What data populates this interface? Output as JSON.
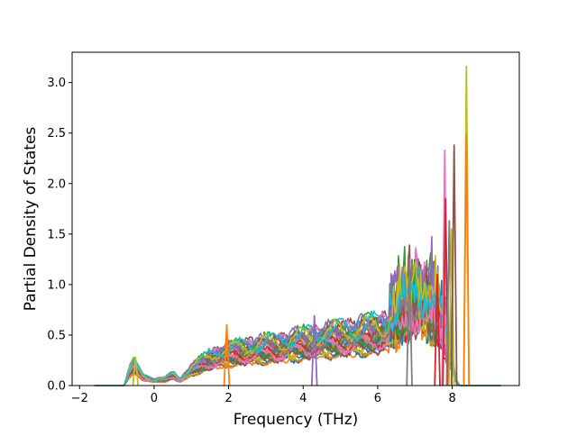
{
  "chart_data": {
    "type": "line",
    "title": "",
    "xlabel": "Frequency (THz)",
    "ylabel": "Partial Density of States",
    "xlim": [
      -2.2,
      9.8
    ],
    "ylim": [
      0,
      3.3
    ],
    "xticks": [
      -2,
      0,
      2,
      4,
      6,
      8
    ],
    "xtick_labels": [
      "−2",
      "0",
      "2",
      "4",
      "6",
      "8"
    ],
    "yticks": [
      0.0,
      0.5,
      1.0,
      1.5,
      2.0,
      2.5,
      3.0
    ],
    "ytick_labels": [
      "0.0",
      "0.5",
      "1.0",
      "1.5",
      "2.0",
      "2.5",
      "3.0"
    ],
    "grid": false,
    "legend": "none",
    "x_range": [
      -1.6,
      9.3
    ],
    "palette": [
      "#1f77b4",
      "#ff7f0e",
      "#2ca02c",
      "#d62728",
      "#9467bd",
      "#8c564b",
      "#e377c2",
      "#7f7f7f",
      "#bcbd22",
      "#17becf"
    ],
    "series_count": 40,
    "envelope": {
      "x": [
        -1.6,
        -0.8,
        -0.7,
        -0.55,
        -0.45,
        -0.3,
        0.0,
        0.3,
        0.5,
        0.7,
        1.0,
        1.5,
        2.0,
        2.5,
        3.0,
        3.5,
        4.0,
        4.5,
        5.0,
        5.5,
        6.0,
        6.5,
        6.9,
        7.2,
        7.5,
        7.7,
        7.8,
        7.9,
        8.0,
        8.1,
        8.2,
        8.3,
        8.4,
        8.5,
        8.6,
        9.3
      ],
      "y": [
        0.0,
        0.0,
        0.1,
        0.2,
        0.15,
        0.08,
        0.05,
        0.06,
        0.1,
        0.05,
        0.15,
        0.25,
        0.3,
        0.33,
        0.35,
        0.37,
        0.4,
        0.43,
        0.45,
        0.47,
        0.5,
        0.55,
        0.65,
        0.7,
        0.6,
        0.5,
        0.4,
        0.3,
        0.2,
        0.05,
        0.0,
        0.0,
        0.0,
        0.0,
        0.0,
        0.0
      ]
    },
    "peaks": [
      {
        "x": -0.5,
        "y": 0.28,
        "color": "#bcbd22"
      },
      {
        "x": 1.95,
        "y": 0.6,
        "color": "#ff7f0e"
      },
      {
        "x": 4.3,
        "y": 0.69,
        "color": "#9467bd"
      },
      {
        "x": 6.85,
        "y": 1.25,
        "color": "#7f7f7f"
      },
      {
        "x": 7.6,
        "y": 1.1,
        "color": "#d62728"
      },
      {
        "x": 7.8,
        "y": 2.33,
        "color": "#e377c2"
      },
      {
        "x": 7.82,
        "y": 1.85,
        "color": "#d62728"
      },
      {
        "x": 7.92,
        "y": 1.63,
        "color": "#7f7f7f"
      },
      {
        "x": 7.98,
        "y": 1.55,
        "color": "#bcbd22"
      },
      {
        "x": 8.05,
        "y": 2.38,
        "color": "#8c564b"
      },
      {
        "x": 8.38,
        "y": 3.16,
        "color": "#bcbd22"
      },
      {
        "x": 8.38,
        "y": 2.48,
        "color": "#ff7f0e"
      }
    ]
  }
}
